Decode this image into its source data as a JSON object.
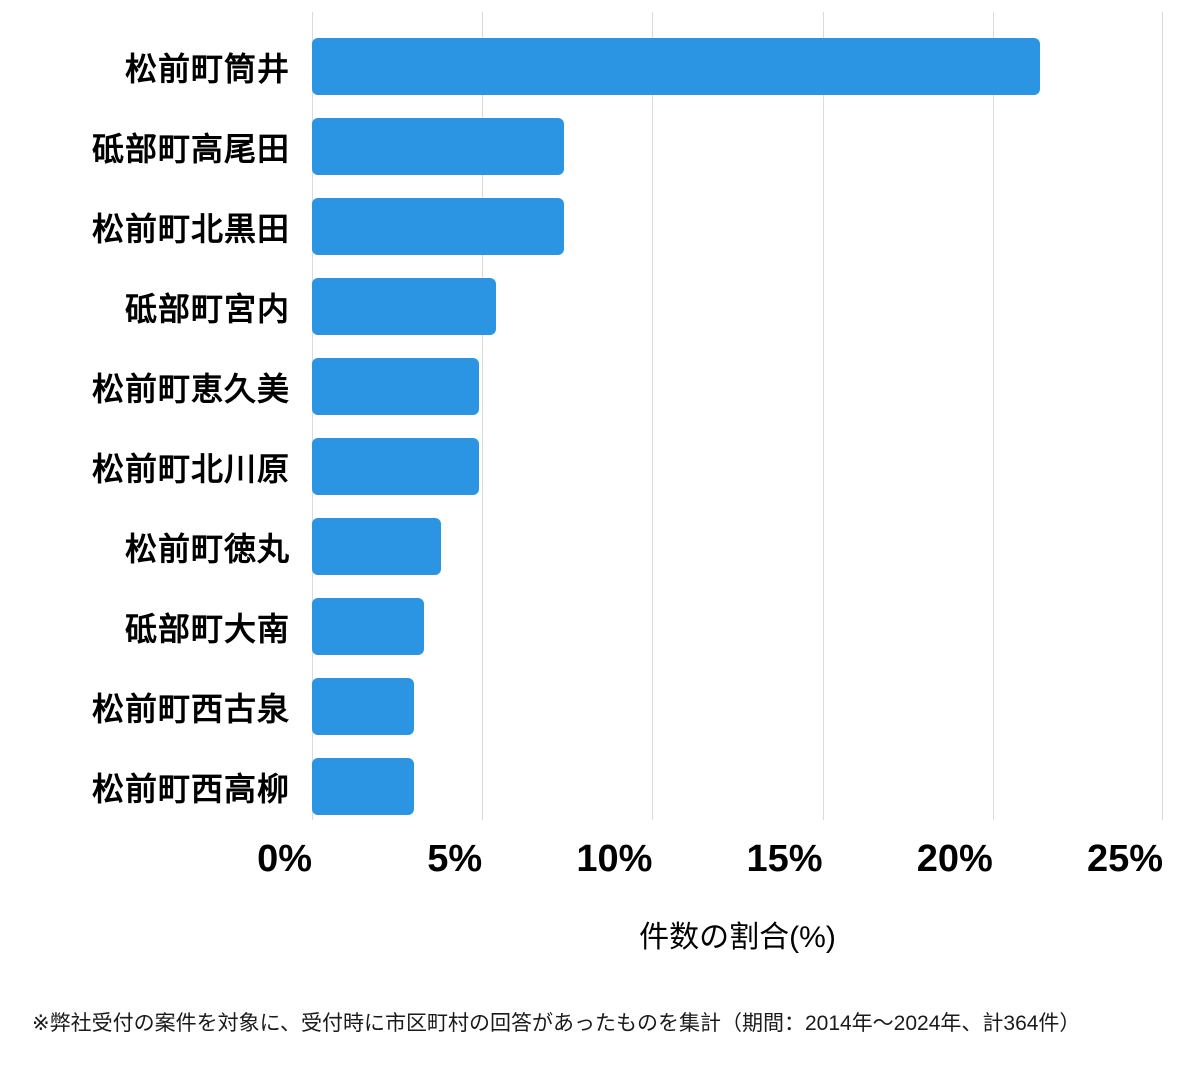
{
  "chart_data": {
    "type": "bar",
    "orientation": "horizontal",
    "title": "",
    "xlabel": "件数の割合(%)",
    "ylabel": "",
    "categories": [
      "松前町筒井",
      "砥部町高尾田",
      "松前町北黒田",
      "砥部町宮内",
      "松前町恵久美",
      "松前町北川原",
      "松前町徳丸",
      "砥部町大南",
      "松前町西古泉",
      "松前町西高柳"
    ],
    "values": [
      21.4,
      7.4,
      7.4,
      5.4,
      4.9,
      4.9,
      3.8,
      3.3,
      3.0,
      3.0
    ],
    "unit": "%",
    "xlim": [
      0,
      25
    ],
    "x_ticks": [
      "0%",
      "5%",
      "10%",
      "15%",
      "20%",
      "25%"
    ],
    "x_tick_values": [
      0,
      5,
      10,
      15,
      20,
      25
    ],
    "grid": "vertical",
    "legend": "none",
    "bar_color": "#2b95e3",
    "gridline_color": "#dbdbdb"
  },
  "footnote": "※弊社受付の案件を対象に、受付時に市区町村の回答があったものを集計（期間：2014年～2024年、計364件）"
}
